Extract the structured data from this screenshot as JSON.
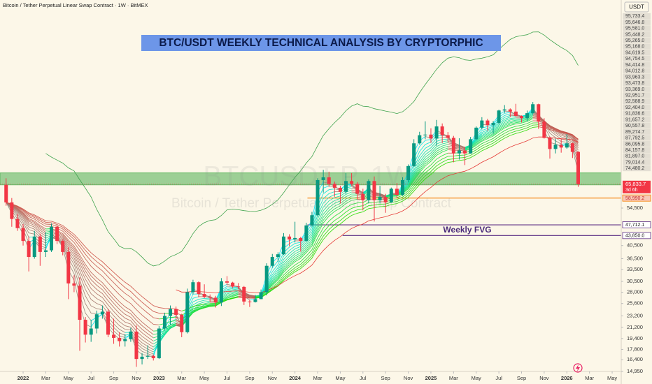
{
  "chart_data": {
    "type": "candlestick",
    "source_label": "Bitcoin / Tether Perpetual Linear Swap Contract · 1W · BitMEX",
    "currency": "USDT",
    "title": "BTC/USDT WEEKLY TECHNICAL ANALYSIS BY CRYPTORPHIC",
    "watermark_symbol": "BTCUSDT.P, 1W",
    "watermark_name": "Bitcoin / Tether Perpetual Linear Swap Contract",
    "up_color": "#089981",
    "down_color": "#f23645",
    "log_y": true,
    "grid": false,
    "xlim": [
      -2.04,
      52.8
    ],
    "xticks": [
      {
        "value": 0,
        "label": "2022"
      },
      {
        "value": 2,
        "label": "Mar"
      },
      {
        "value": 4,
        "label": "May"
      },
      {
        "value": 6,
        "label": "Jul"
      },
      {
        "value": 8,
        "label": "Sep"
      },
      {
        "value": 10,
        "label": "Nov"
      },
      {
        "value": 12,
        "label": "2023"
      },
      {
        "value": 14,
        "label": "Mar"
      },
      {
        "value": 16,
        "label": "May"
      },
      {
        "value": 18,
        "label": "Jul"
      },
      {
        "value": 20,
        "label": "Sep"
      },
      {
        "value": 22,
        "label": "Nov"
      },
      {
        "value": 24,
        "label": "2024"
      },
      {
        "value": 26,
        "label": "Mar"
      },
      {
        "value": 28,
        "label": "May"
      },
      {
        "value": 30,
        "label": "Jul"
      },
      {
        "value": 32,
        "label": "Sep"
      },
      {
        "value": 34,
        "label": "Nov"
      },
      {
        "value": 36,
        "label": "2025"
      },
      {
        "value": 38,
        "label": "Mar"
      },
      {
        "value": 40,
        "label": "May"
      },
      {
        "value": 42,
        "label": "Jul"
      },
      {
        "value": 44,
        "label": "Sep"
      },
      {
        "value": 46,
        "label": "Nov"
      },
      {
        "value": 48,
        "label": "2026"
      },
      {
        "value": 50,
        "label": "Mar"
      },
      {
        "value": 52,
        "label": "May"
      }
    ],
    "ylim": [
      14950,
      283000
    ],
    "yticks": [
      {
        "value": 54500,
        "label": "54,500"
      },
      {
        "value": 40500,
        "label": "40,500"
      },
      {
        "value": 36500,
        "label": "36,500"
      },
      {
        "value": 33500,
        "label": "33,500"
      },
      {
        "value": 30500,
        "label": "30,500"
      },
      {
        "value": 28000,
        "label": "28,000"
      },
      {
        "value": 25600,
        "label": "25,600"
      },
      {
        "value": 23200,
        "label": "23,200"
      },
      {
        "value": 21200,
        "label": "21,200"
      },
      {
        "value": 19400,
        "label": "19,400"
      },
      {
        "value": 17800,
        "label": "17,800"
      },
      {
        "value": 16400,
        "label": "16,400"
      },
      {
        "value": 14950,
        "label": "14,950"
      }
    ],
    "ribbon_value_labels": [
      "95,733.4",
      "95,646.8",
      "95,581.0",
      "95,448.2",
      "95,265.0",
      "95,168.0",
      "94,619.5",
      "94,754.5",
      "94,414.8",
      "94,012.8",
      "93,963.3",
      "93,473.8",
      "93,369.0",
      "92,951.7",
      "92,588.9",
      "92,404.0",
      "91,836.6",
      "91,657.2",
      "90,557.8",
      "89,274.7",
      "87,792.5",
      "86,095.8",
      "84,157.8",
      "81,897.0",
      "79,014.4",
      "74,480.2"
    ],
    "zones": [
      {
        "low": 65500,
        "high": 72000,
        "color": "#4caf50"
      }
    ],
    "levels": [
      {
        "value": 58990.2,
        "label": "58,990.2",
        "from": 25.1,
        "color": "#f57c00"
      },
      {
        "value": 47712.1,
        "label": "47,712.1",
        "from": 25.1,
        "color": "#5b2c83"
      },
      {
        "value": 43850.0,
        "label": "43,850.0",
        "from": 28.2,
        "color": "#5b2c83"
      }
    ],
    "annotation": "Weekly FVG",
    "last_price": {
      "value": 65833.7,
      "label": "65,833.7",
      "countdown": "3d 6h"
    },
    "x": [
      -1.5,
      -1,
      -0.5,
      0,
      0.5,
      1,
      1.5,
      2,
      2.5,
      3,
      3.5,
      4,
      4.5,
      5,
      5.5,
      6,
      6.5,
      7,
      7.5,
      8,
      8.5,
      9,
      9.5,
      10,
      10.5,
      11,
      11.5,
      12,
      12.5,
      13,
      13.5,
      14,
      14.5,
      15,
      15.5,
      16,
      16.5,
      17,
      17.5,
      18,
      18.5,
      19,
      19.5,
      20,
      20.5,
      21,
      21.5,
      22,
      22.5,
      23,
      23.5,
      24,
      24.5,
      25,
      25.5,
      26,
      26.5,
      27,
      27.5,
      28,
      28.5,
      29,
      29.5,
      30,
      30.5,
      31,
      31.5,
      32,
      32.5,
      33,
      33.5,
      34,
      34.5,
      35,
      35.5,
      36,
      36.5,
      37,
      37.5,
      38,
      38.5,
      39,
      39.5,
      40,
      40.5,
      41,
      41.5,
      42,
      42.5,
      43,
      43.5,
      44,
      44.5,
      45,
      45.5,
      46,
      46.5,
      47,
      47.5,
      48,
      48.5,
      49
    ],
    "ohlc": [
      [
        65500,
        69000,
        55500,
        57000
      ],
      [
        57000,
        59000,
        47000,
        50000
      ],
      [
        50000,
        52000,
        45500,
        46500
      ],
      [
        46500,
        48000,
        40500,
        42000
      ],
      [
        42000,
        43500,
        33000,
        37000
      ],
      [
        37000,
        45500,
        36500,
        43500
      ],
      [
        43500,
        44500,
        34500,
        38500
      ],
      [
        38500,
        45000,
        37000,
        39000
      ],
      [
        39000,
        48200,
        38500,
        47000
      ],
      [
        47000,
        47500,
        41000,
        42000
      ],
      [
        42000,
        42500,
        37500,
        38500
      ],
      [
        38500,
        40000,
        26500,
        30000
      ],
      [
        30000,
        32000,
        28000,
        29500
      ],
      [
        29500,
        31500,
        17600,
        22500
      ],
      [
        22500,
        23000,
        18800,
        20000
      ],
      [
        20000,
        22500,
        18900,
        21000
      ],
      [
        21000,
        24200,
        20200,
        23500
      ],
      [
        23500,
        25200,
        22700,
        24000
      ],
      [
        24000,
        24500,
        19600,
        20000
      ],
      [
        20000,
        22700,
        18600,
        19500
      ],
      [
        19500,
        20400,
        18200,
        19000
      ],
      [
        19000,
        20100,
        18200,
        19300
      ],
      [
        19300,
        21100,
        18900,
        20500
      ],
      [
        20500,
        21500,
        15500,
        16500
      ],
      [
        16500,
        17300,
        15800,
        16800
      ],
      [
        16800,
        18400,
        16500,
        16900
      ],
      [
        16900,
        17100,
        16300,
        16600
      ],
      [
        16600,
        21400,
        16500,
        21000
      ],
      [
        21000,
        23800,
        20800,
        23200
      ],
      [
        23200,
        25200,
        21600,
        24500
      ],
      [
        24500,
        25000,
        22600,
        23400
      ],
      [
        23400,
        23600,
        19600,
        20400
      ],
      [
        20400,
        28800,
        20200,
        28000
      ],
      [
        28000,
        30900,
        27500,
        30300
      ],
      [
        30300,
        30500,
        26900,
        27600
      ],
      [
        27600,
        29800,
        26700,
        27000
      ],
      [
        27000,
        27500,
        25900,
        26800
      ],
      [
        26800,
        27200,
        24800,
        25800
      ],
      [
        25800,
        31300,
        25100,
        30500
      ],
      [
        30500,
        31800,
        29600,
        30200
      ],
      [
        30200,
        30400,
        28900,
        29300
      ],
      [
        29300,
        30100,
        28700,
        29200
      ],
      [
        29200,
        29400,
        25300,
        26000
      ],
      [
        26000,
        26400,
        24900,
        25900
      ],
      [
        25900,
        27400,
        25800,
        26500
      ],
      [
        26500,
        28600,
        26500,
        28000
      ],
      [
        28000,
        35200,
        27300,
        34500
      ],
      [
        34500,
        37900,
        34000,
        37000
      ],
      [
        37000,
        38400,
        35600,
        37800
      ],
      [
        37800,
        44700,
        37600,
        43500
      ],
      [
        43500,
        44300,
        40300,
        42500
      ],
      [
        42500,
        48900,
        41500,
        43000
      ],
      [
        43000,
        43400,
        38600,
        42000
      ],
      [
        42000,
        48500,
        41900,
        47500
      ],
      [
        47500,
        52900,
        47000,
        51500
      ],
      [
        51500,
        69000,
        51000,
        68000
      ],
      [
        68000,
        73800,
        61600,
        69500
      ],
      [
        69500,
        72700,
        64500,
        66000
      ],
      [
        66000,
        67200,
        59600,
        64000
      ],
      [
        64000,
        65000,
        56500,
        62000
      ],
      [
        62000,
        71900,
        61000,
        67500
      ],
      [
        67500,
        71900,
        65000,
        66000
      ],
      [
        66000,
        67000,
        58400,
        61000
      ],
      [
        61000,
        63500,
        53500,
        58000
      ],
      [
        58000,
        68400,
        56500,
        67500
      ],
      [
        67500,
        70000,
        49000,
        58000
      ],
      [
        58000,
        65000,
        56500,
        59500
      ],
      [
        59500,
        61000,
        52500,
        57000
      ],
      [
        57000,
        64100,
        56800,
        63500
      ],
      [
        63500,
        66500,
        58900,
        60500
      ],
      [
        60500,
        69500,
        60000,
        68000
      ],
      [
        68000,
        77000,
        66800,
        76000
      ],
      [
        76000,
        94000,
        75500,
        91000
      ],
      [
        91000,
        99700,
        90000,
        97000
      ],
      [
        97000,
        108300,
        94000,
        97500
      ],
      [
        97500,
        102500,
        91300,
        94500
      ],
      [
        94500,
        109500,
        89200,
        104000
      ],
      [
        104000,
        106500,
        91200,
        97000
      ],
      [
        97000,
        99500,
        91800,
        95000
      ],
      [
        95000,
        96500,
        78300,
        84000
      ],
      [
        84000,
        94700,
        80000,
        86000
      ],
      [
        86000,
        88500,
        76600,
        84000
      ],
      [
        84000,
        95700,
        83800,
        94000
      ],
      [
        94000,
        104000,
        93500,
        103000
      ],
      [
        103000,
        111900,
        101500,
        109000
      ],
      [
        109000,
        110500,
        100500,
        105000
      ],
      [
        105000,
        108700,
        98200,
        107000
      ],
      [
        107000,
        118800,
        105600,
        118000
      ],
      [
        118000,
        123200,
        115700,
        119000
      ],
      [
        119000,
        120000,
        112000,
        117000
      ],
      [
        117000,
        124400,
        112500,
        113000
      ],
      [
        113000,
        113500,
        107300,
        111000
      ],
      [
        111000,
        117900,
        108500,
        115500
      ],
      [
        115500,
        126200,
        114000,
        124000
      ],
      [
        124000,
        124500,
        102000,
        108000
      ],
      [
        108000,
        111000,
        94500,
        95000
      ],
      [
        95000,
        96000,
        80600,
        87000
      ],
      [
        87000,
        94500,
        84000,
        90000
      ],
      [
        90000,
        94600,
        84500,
        88000
      ],
      [
        88000,
        97900,
        87200,
        91000
      ],
      [
        91000,
        91500,
        81000,
        85000
      ],
      [
        85000,
        85500,
        64500,
        65833.7
      ]
    ]
  }
}
